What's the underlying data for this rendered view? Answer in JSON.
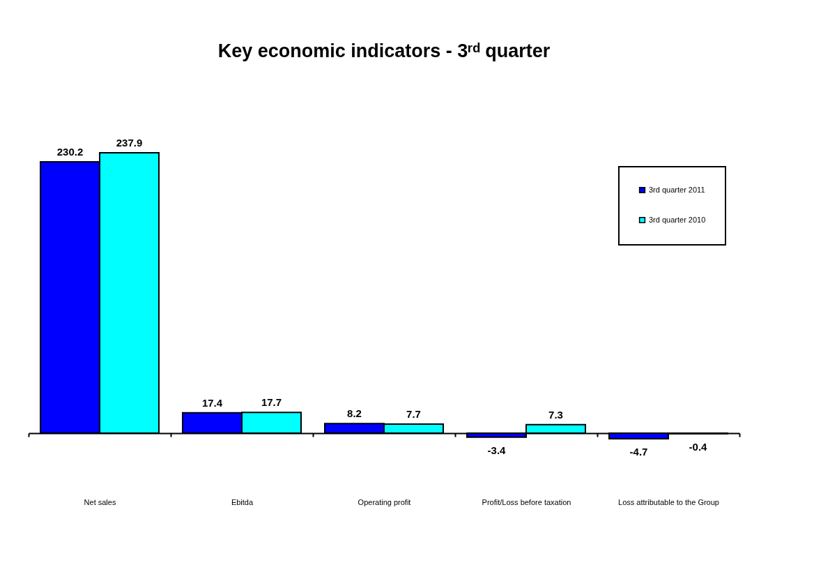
{
  "chart_data": {
    "type": "bar",
    "title": "Key economic indicators - 3ʳᵈ quarter",
    "categories": [
      "Net sales",
      "Ebitda",
      "Operating profit",
      "Profit/Loss before taxation",
      "Loss attributable to the Group"
    ],
    "series": [
      {
        "name": "3rd quarter 2011",
        "color": "#0000ff",
        "values": [
          230.2,
          17.4,
          8.2,
          -3.4,
          -4.7
        ]
      },
      {
        "name": "3rd quarter 2010",
        "color": "#00ffff",
        "values": [
          237.9,
          17.7,
          7.7,
          7.3,
          -0.4
        ]
      }
    ],
    "data_labels": true,
    "legend": "top right",
    "grid": false
  }
}
